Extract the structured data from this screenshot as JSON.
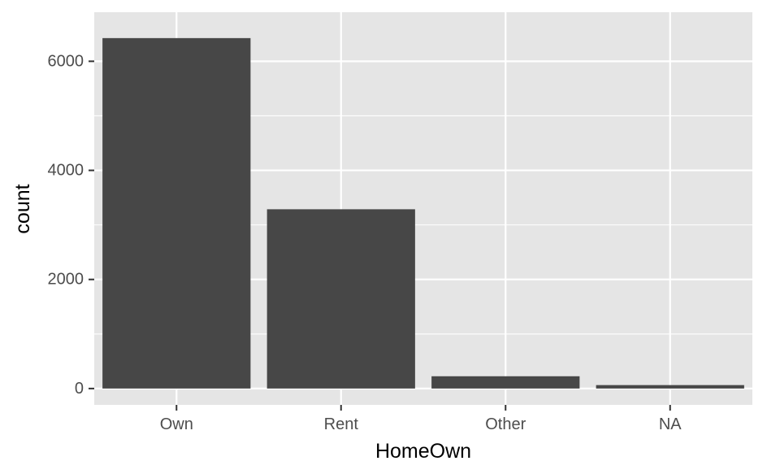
{
  "chart_data": {
    "type": "bar",
    "categories": [
      "Own",
      "Rent",
      "Other",
      "NA"
    ],
    "values": [
      6425,
      3287,
      225,
      63
    ],
    "title": "",
    "xlabel": "HomeOwn",
    "ylabel": "count",
    "ylim": [
      -300,
      6900
    ],
    "yticks": [
      0,
      2000,
      4000,
      6000
    ],
    "ytick_labels": [
      "0",
      "2000",
      "4000",
      "6000"
    ],
    "grid": true,
    "legend": "none",
    "colors": {
      "panel_background": "#e5e5e5",
      "grid": "#ffffff",
      "bar_fill": "#474747",
      "tick_text": "#4d4d4d",
      "title_text": "#000000"
    }
  }
}
